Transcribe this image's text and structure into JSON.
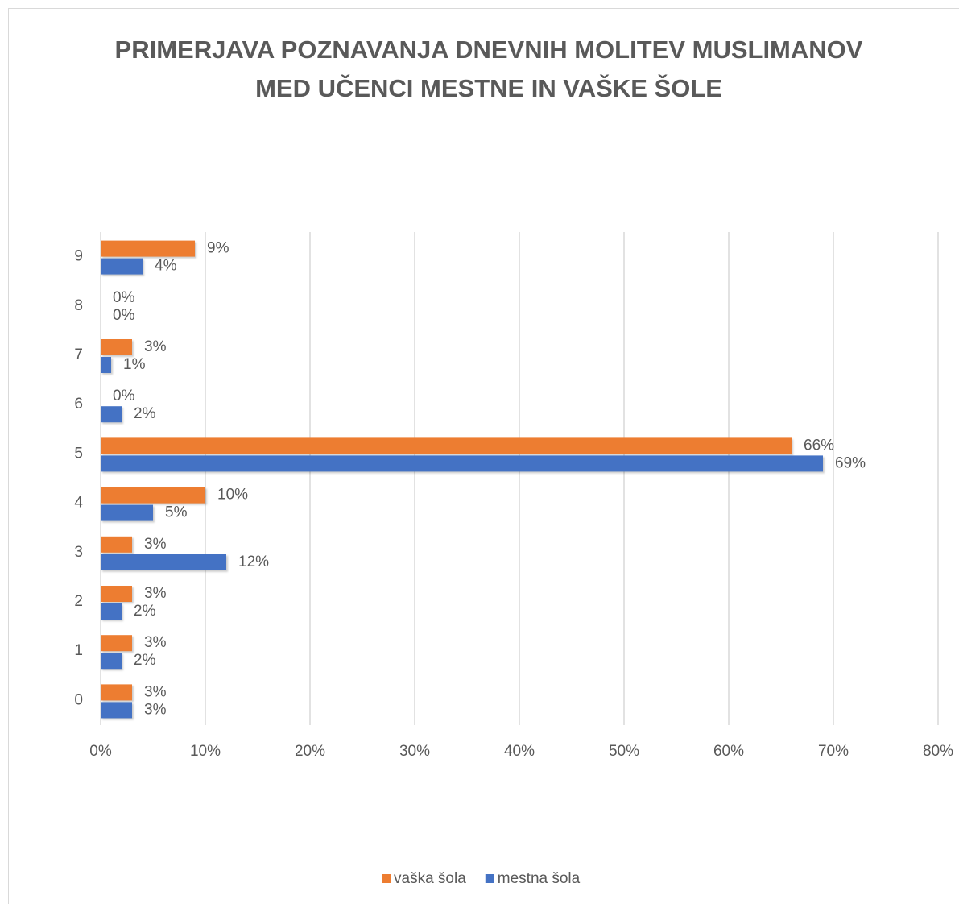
{
  "chart_data": {
    "type": "barh",
    "title": "PRIMERJAVA POZNAVANJA DNEVNIH MOLITEV MUSLIMANOV MED UČENCI MESTNE IN VAŠKE ŠOLE",
    "categories": [
      "0",
      "1",
      "2",
      "3",
      "4",
      "5",
      "6",
      "7",
      "8",
      "9"
    ],
    "series": [
      {
        "name": "vaška šola",
        "color": "#ed7d31",
        "values": [
          3,
          3,
          3,
          3,
          10,
          66,
          0,
          3,
          0,
          9
        ],
        "value_labels": [
          "3%",
          "3%",
          "3%",
          "3%",
          "10%",
          "66%",
          "0%",
          "3%",
          "0%",
          "9%"
        ]
      },
      {
        "name": "mestna šola",
        "color": "#4472c4",
        "values": [
          3,
          2,
          2,
          12,
          5,
          69,
          2,
          1,
          0,
          4
        ],
        "value_labels": [
          "3%",
          "2%",
          "2%",
          "12%",
          "5%",
          "69%",
          "2%",
          "1%",
          "0%",
          "4%"
        ]
      }
    ],
    "xlim": [
      0,
      80
    ],
    "xticks": [
      {
        "value": 0,
        "label": "0%"
      },
      {
        "value": 10,
        "label": "10%"
      },
      {
        "value": 20,
        "label": "20%"
      },
      {
        "value": 30,
        "label": "30%"
      },
      {
        "value": 40,
        "label": "40%"
      },
      {
        "value": 50,
        "label": "50%"
      },
      {
        "value": 60,
        "label": "60%"
      },
      {
        "value": 70,
        "label": "70%"
      },
      {
        "value": 80,
        "label": "80%"
      }
    ],
    "grid": true,
    "legend": "bottom"
  }
}
